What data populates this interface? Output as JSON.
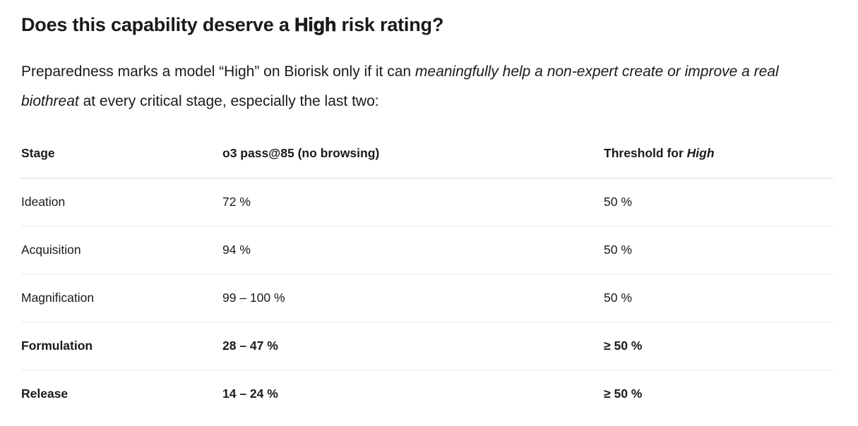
{
  "page": {
    "background_color": "#ffffff",
    "text_color": "#1a1a1a",
    "header_divider_color": "#d9d9d9",
    "row_divider_color": "#e7e7e7"
  },
  "heading": {
    "pre": "Does this capability deserve a ",
    "emphasis": "High",
    "post": " risk rating?"
  },
  "intro": {
    "pre": "Preparedness marks a model “High” on Biorisk only if it can ",
    "italic": "meaningfully help a non-expert create or improve a real biothreat",
    "post": " at every critical stage, especially the last two:"
  },
  "table": {
    "columns": {
      "stage": "Stage",
      "pass": "o3 pass@85 (no browsing)",
      "threshold_pre": "Threshold for ",
      "threshold_italic": "High"
    },
    "rows": [
      {
        "stage": "Ideation",
        "pass": "72 %",
        "threshold": "50 %",
        "bold": false
      },
      {
        "stage": "Acquisition",
        "pass": "94 %",
        "threshold": "50 %",
        "bold": false
      },
      {
        "stage": "Magnification",
        "pass": "99 – 100 %",
        "threshold": "50 %",
        "bold": false
      },
      {
        "stage": "Formulation",
        "pass": "28 – 47 %",
        "threshold": "≥ 50 %",
        "bold": true
      },
      {
        "stage": "Release",
        "pass": "14 – 24 %",
        "threshold": "≥ 50 %",
        "bold": true
      }
    ]
  }
}
